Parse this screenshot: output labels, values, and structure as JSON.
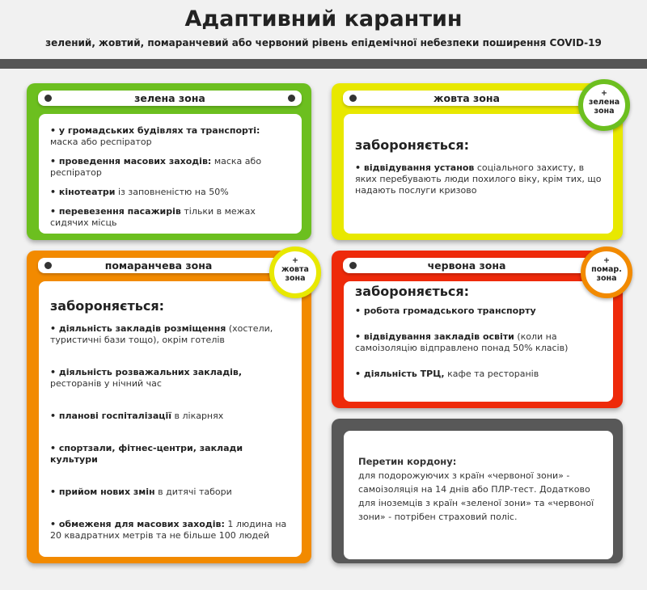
{
  "title": "Адаптивний карантин",
  "subtitle": "зелений, жовтий, помаранчевий або червоний рівень епідемічної небезпеки поширення COVID-19",
  "colors": {
    "green": "#6cbf1f",
    "yellow": "#e8e800",
    "orange": "#f28a00",
    "red": "#ee2a0a",
    "gray": "#585858"
  },
  "green": {
    "label": "зелена зона",
    "items": [
      {
        "bold": "у громадських будівлях та транспорті:",
        "rest": " маска або респіратор"
      },
      {
        "bold": "проведення масових заходів:",
        "rest": " маска або респіратор"
      },
      {
        "bold": "кінотеатри",
        "rest": " із заповненістю на 50%"
      },
      {
        "bold": "перевезення пасажирів",
        "rest": " тільки в межах сидячих місць"
      }
    ]
  },
  "yellow": {
    "label": "жовта зона",
    "badge": [
      "+",
      "зелена",
      "зона"
    ],
    "forbidden": "забороняється:",
    "items": [
      {
        "bold": "відвідування установ",
        "rest": " соціального захисту, в яких перебувають люди похилого віку, крім тих, що надають послуги кризово"
      }
    ]
  },
  "orange": {
    "label": "помаранчева зона",
    "badge": [
      "+",
      "жовта",
      "зона"
    ],
    "forbidden": "забороняється:",
    "items": [
      {
        "bold": "діяльність закладів розміщення",
        "rest": " (хостели, туристичні бази тощо), окрім готелів"
      },
      {
        "bold": "діяльність розважальних закладів,",
        "rest": " ресторанів у нічний час"
      },
      {
        "bold": "планові госпіталізації",
        "rest": " в лікарнях"
      },
      {
        "bold": "спортзали, фітнес-центри, заклади культури",
        "rest": ""
      },
      {
        "bold": "прийом нових змін",
        "rest": " в дитячі табори"
      },
      {
        "bold": "обмеженя для масових заходів:",
        "rest": "  1 людина на 20 квадратних метрів та не більше 100 людей"
      }
    ]
  },
  "red": {
    "label": "червона зона",
    "badge": [
      "+",
      "помар.",
      "зона"
    ],
    "forbidden": "забороняється:",
    "items": [
      {
        "bold": "робота громадського транспорту",
        "rest": ""
      },
      {
        "bold": "відвідування закладів освіти",
        "rest": " (коли на самоізоляцію відправлено понад 50% класів)"
      },
      {
        "bold": "діяльність ТРЦ,",
        "rest": " кафе та ресторанів"
      }
    ]
  },
  "border": {
    "heading": "Перетин кордону:",
    "text": "для подорожуючих з країн «червоної зони» - самоізоляція на 14 днів або ПЛР-тест. Додатково для іноземців з країн «зеленої зони» та «червоної зони» - потрібен страховий поліс."
  }
}
